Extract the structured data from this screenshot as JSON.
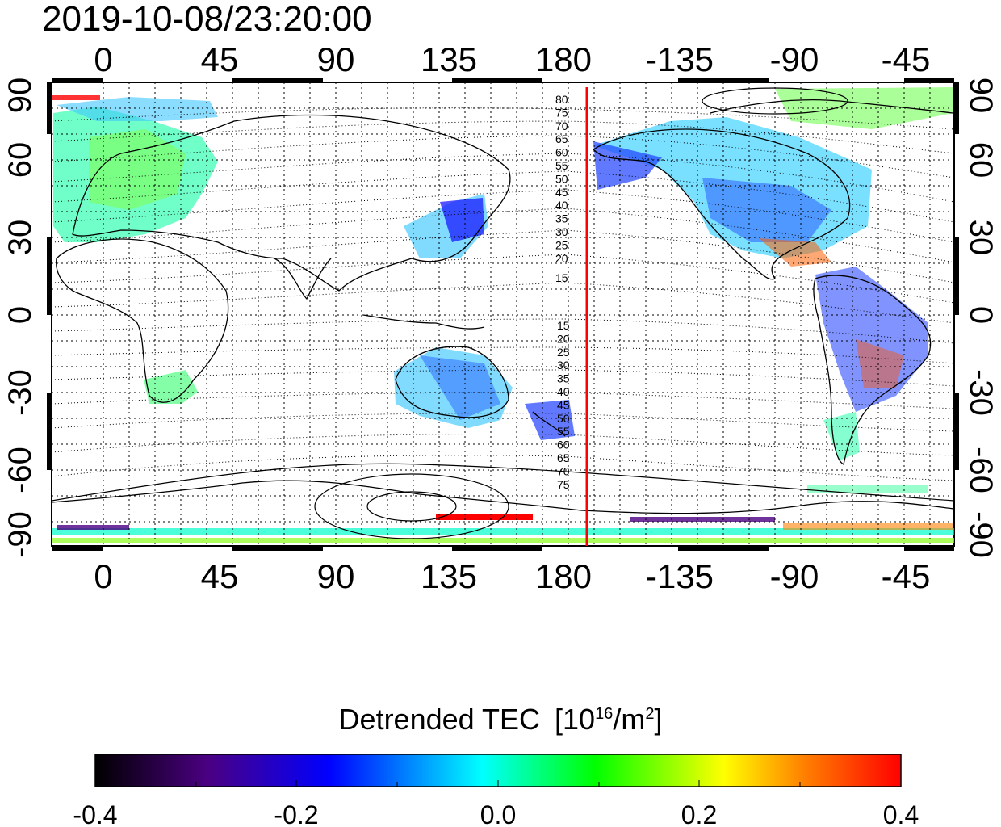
{
  "title": "2019-10-08/23:20:00",
  "map": {
    "lon_ticks_top": [
      "0",
      "45",
      "90",
      "135",
      "180",
      "-135",
      "-90",
      "-45"
    ],
    "lon_ticks_bottom": [
      "0",
      "45",
      "90",
      "135",
      "180",
      "-135",
      "-90",
      "-45"
    ],
    "lat_ticks_left": [
      "90",
      "60",
      "30",
      "0",
      "-30",
      "-60",
      "-90"
    ],
    "lat_ticks_right": [
      "90",
      "60",
      "30",
      "0",
      "-30",
      "-60",
      "-90"
    ],
    "marker_line": {
      "lon": 191,
      "color": "#ff0000"
    },
    "contour_labels_north": [
      "80",
      "75",
      "70",
      "65",
      "60",
      "55",
      "50",
      "45",
      "40",
      "35",
      "30",
      "25",
      "20",
      "15"
    ],
    "contour_labels_south": [
      "15",
      "20",
      "25",
      "30",
      "35",
      "40",
      "45",
      "50",
      "55",
      "60",
      "65",
      "70",
      "75"
    ]
  },
  "colorbar": {
    "label": "Detrended TEC",
    "unit_prefix": "[10",
    "unit_exp": "16",
    "unit_mid": "/m",
    "unit_exp2": "2",
    "unit_suffix": "]",
    "ticks": [
      "-0.4",
      "-0.2",
      "0.0",
      "0.2",
      "0.4"
    ],
    "min": -0.4,
    "max": 0.4,
    "colors": [
      "#000000",
      "#4b0082",
      "#0000ff",
      "#00ffff",
      "#00ff00",
      "#ffff00",
      "#ff8000",
      "#ff0000"
    ]
  }
}
